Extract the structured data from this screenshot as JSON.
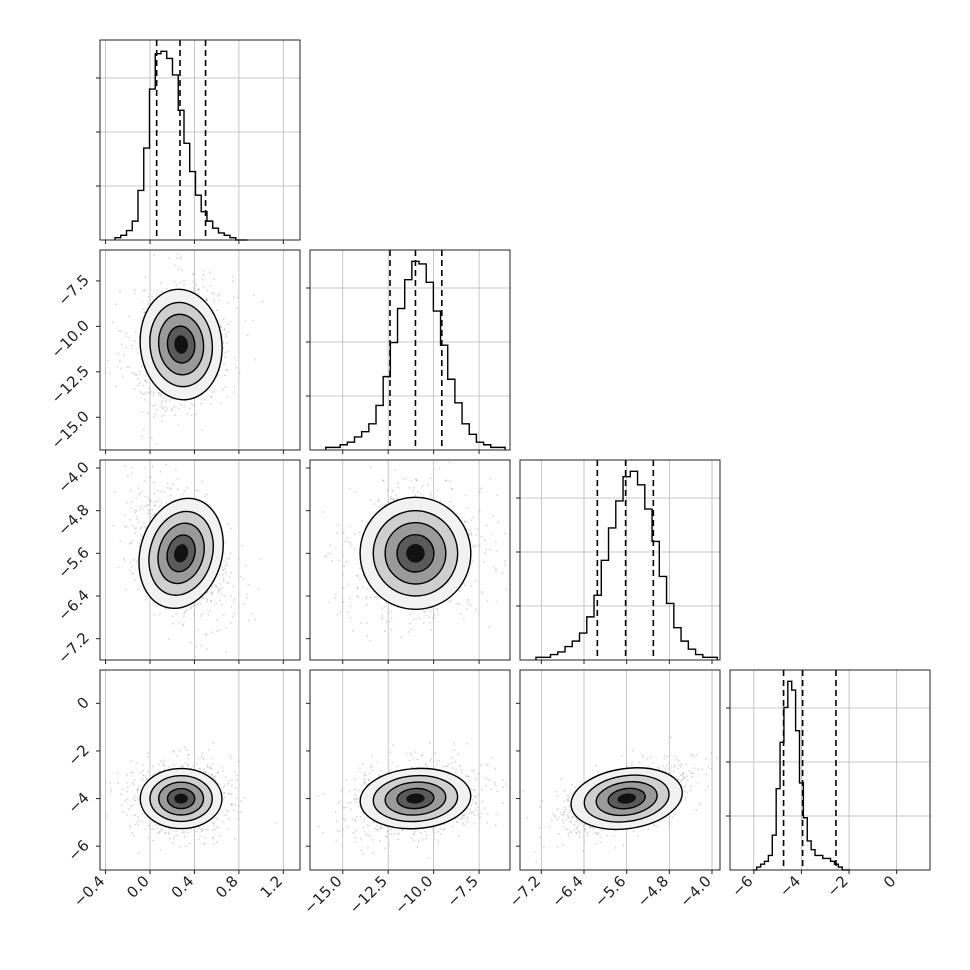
{
  "chart_data": {
    "type": "corner",
    "colors": {
      "line": "#000000",
      "points": "#8c8c8c",
      "grid": "#b0b0b0",
      "frame": "#222222"
    },
    "grid": true,
    "parameters": [
      {
        "range": [
          -0.45,
          1.35
        ],
        "ticks": [
          -0.4,
          0.0,
          0.4,
          0.8,
          1.2
        ],
        "tick_labels": [
          "−0.4",
          "0.0",
          "0.4",
          "0.8",
          "1.2"
        ],
        "quantiles": [
          0.06,
          0.27,
          0.5
        ],
        "mean": 0.28,
        "sd": 0.175
      },
      {
        "range": [
          -16.8,
          -5.8
        ],
        "ticks": [
          -15.0,
          -12.5,
          -10.0,
          -7.5
        ],
        "tick_labels": [
          "−15.0",
          "−12.5",
          "−10.0",
          "−7.5"
        ],
        "quantiles": [
          -12.4,
          -11.0,
          -9.55
        ],
        "mean": -11.0,
        "sd": 1.45
      },
      {
        "range": [
          -7.6,
          -3.85
        ],
        "ticks": [
          -7.2,
          -6.4,
          -5.6,
          -4.8,
          -4.0
        ],
        "tick_labels": [
          "−7.2",
          "−6.4",
          "−5.6",
          "−4.8",
          "−4.0"
        ],
        "quantiles": [
          -6.15,
          -5.62,
          -5.1
        ],
        "mean": -5.6,
        "sd": 0.5
      },
      {
        "range": [
          -7.0,
          1.4
        ],
        "ticks": [
          -6,
          -4,
          -2,
          0
        ],
        "tick_labels": [
          "−6",
          "−4",
          "−2",
          "0"
        ],
        "quantiles": [
          -4.75,
          -3.95,
          -2.55
        ],
        "mean": -4.0,
        "sd": 0.6
      }
    ],
    "histograms": [
      [
        1,
        2,
        4,
        8,
        21,
        39,
        64,
        79,
        80,
        77,
        70,
        55,
        41,
        29,
        19,
        12,
        8,
        5,
        3,
        2,
        1,
        0,
        0
      ],
      [
        1,
        1,
        2,
        3,
        5,
        7,
        10,
        17,
        28,
        41,
        54,
        65,
        72,
        71,
        64,
        53,
        40,
        27,
        18,
        10,
        6,
        3,
        2,
        1,
        1
      ],
      [
        1,
        1,
        2,
        3,
        5,
        7,
        10,
        16,
        24,
        37,
        49,
        59,
        68,
        70,
        65,
        56,
        44,
        31,
        21,
        12,
        7,
        4,
        2,
        1,
        1
      ],
      [
        0,
        1,
        2,
        3,
        5,
        12,
        28,
        44,
        56,
        65,
        62,
        48,
        30,
        18,
        10,
        7,
        5,
        5,
        4,
        4,
        3,
        2,
        1,
        0,
        0
      ]
    ],
    "correlations": [
      [
        1,
        0.15,
        -0.45,
        0.0
      ],
      [
        0.15,
        1,
        0.05,
        0.25
      ],
      [
        -0.45,
        0.05,
        1,
        0.55
      ],
      [
        0.0,
        0.25,
        0.55,
        1
      ]
    ]
  }
}
